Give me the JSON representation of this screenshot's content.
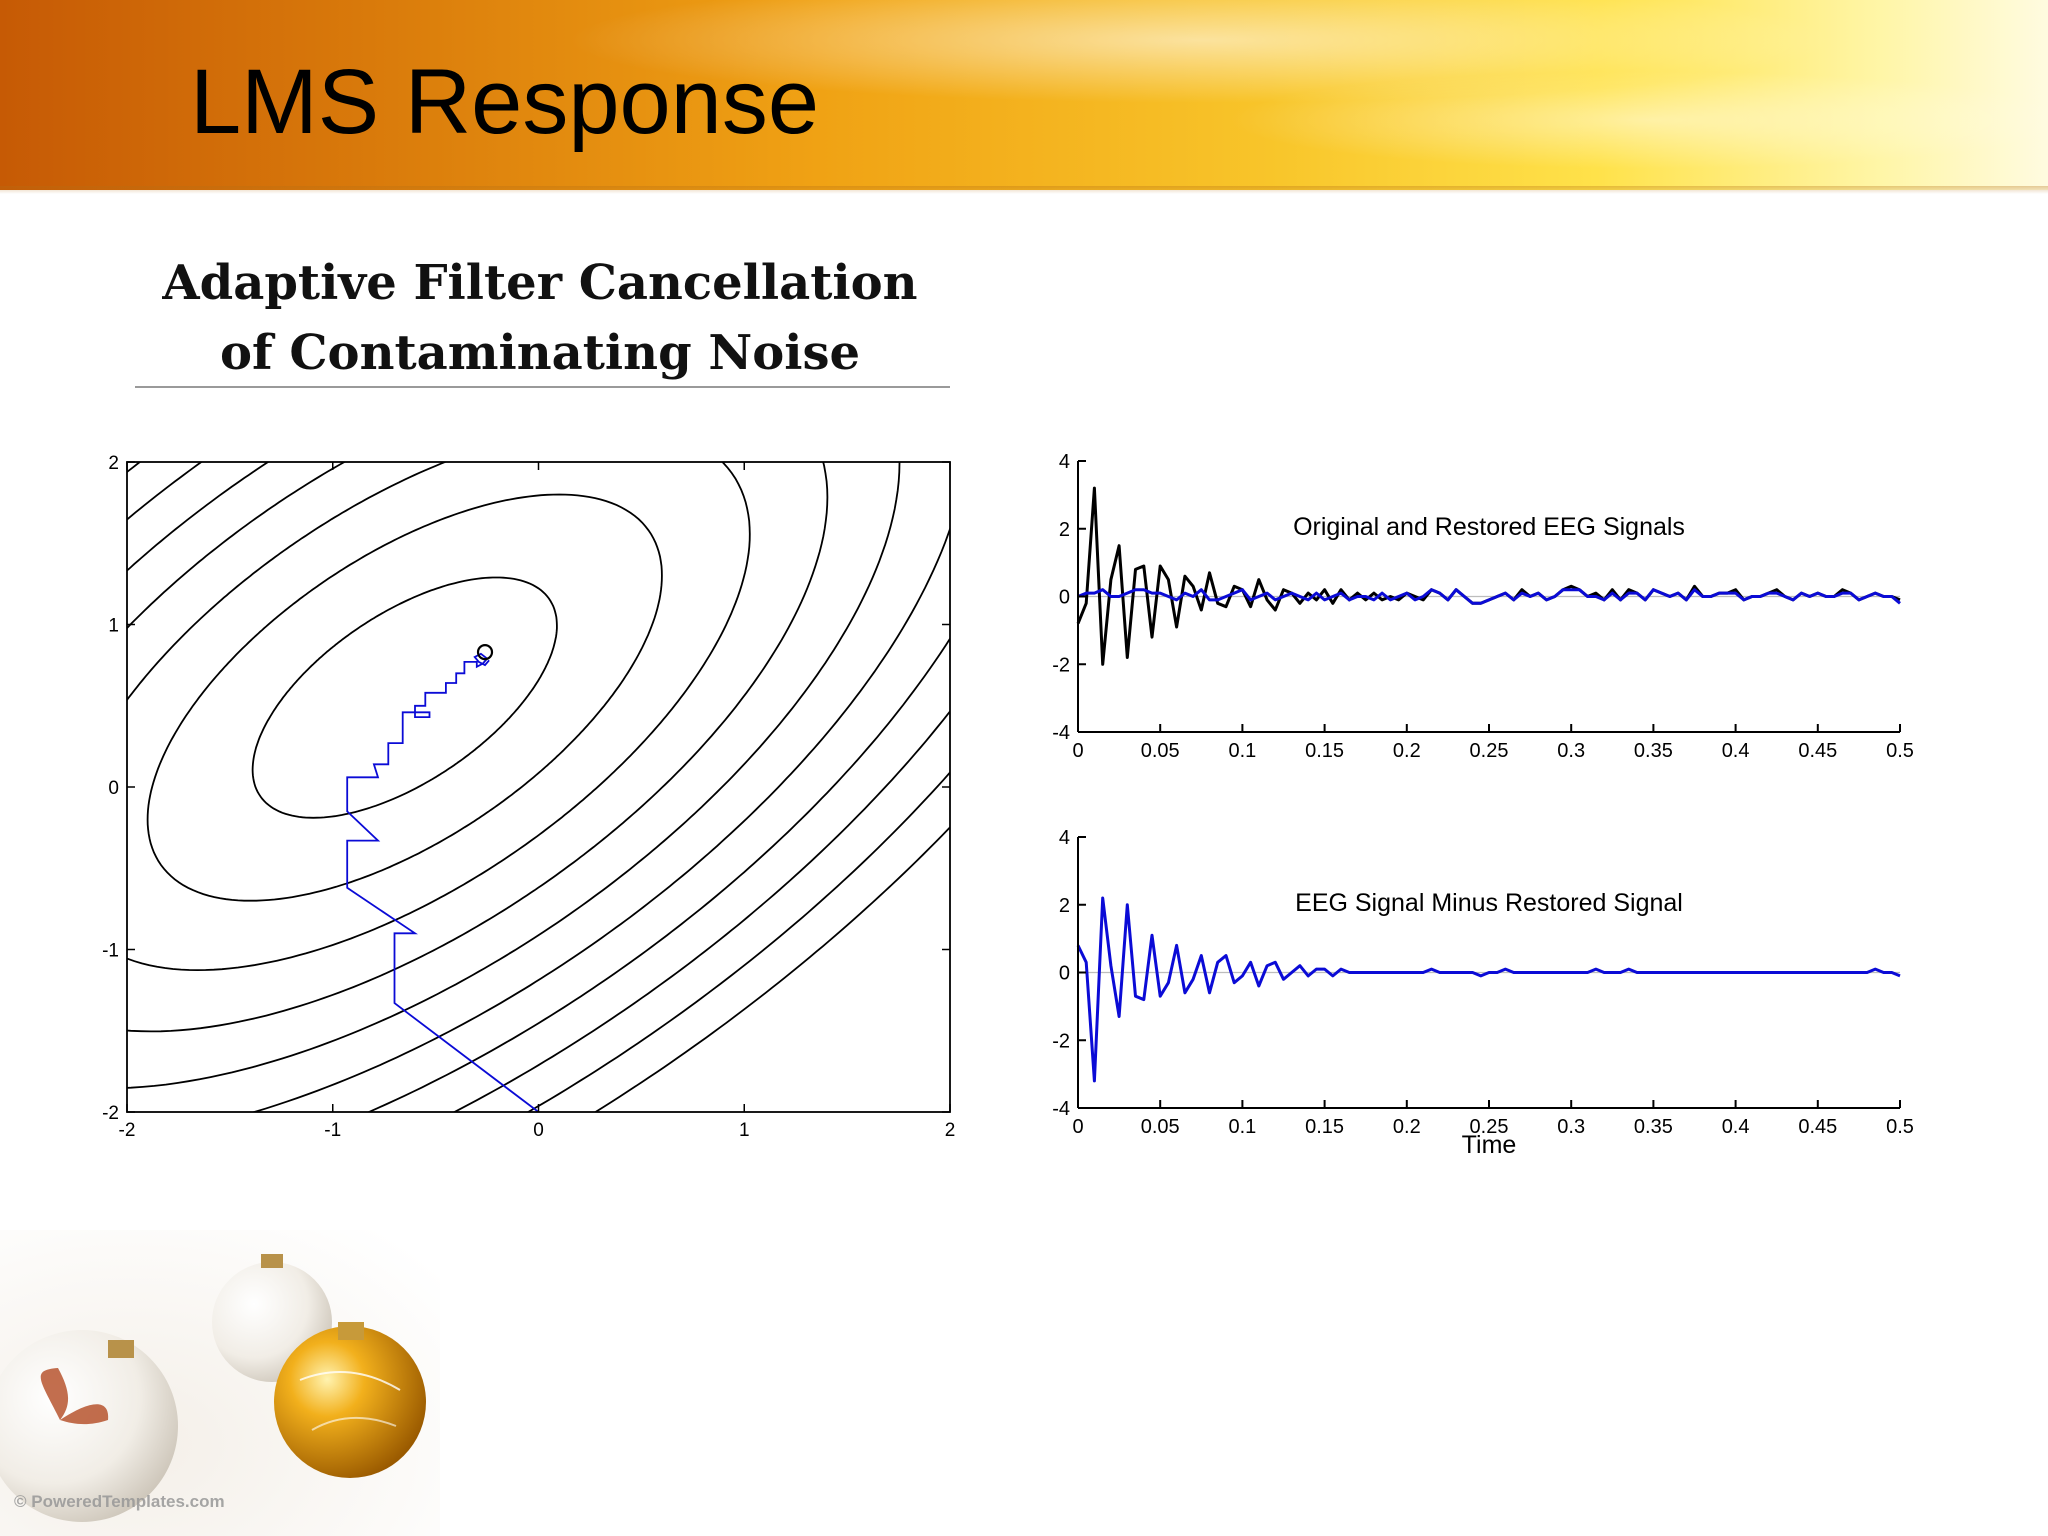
{
  "slide": {
    "title": "LMS Response",
    "figure_heading": "Adaptive Filter Cancellation of Contaminating Noise",
    "footer_credit": "© PoweredTemplates.com"
  },
  "colors": {
    "banner_dark": "#c65a05",
    "banner_light": "#ffe24a",
    "black_signal": "#000000",
    "blue_signal": "#0b0bd6",
    "contour": "#000000"
  },
  "chart_data": [
    {
      "id": "contour",
      "type": "line",
      "title": "",
      "xlabel": "",
      "ylabel": "",
      "xlim": [
        -2,
        2
      ],
      "ylim": [
        -2,
        2
      ],
      "xticks": [
        -2,
        -1,
        0,
        1,
        2
      ],
      "yticks": [
        -2,
        -1,
        0,
        1,
        2
      ],
      "xtick_labels": [
        "-2",
        "-1",
        "0",
        "1",
        "2"
      ],
      "ytick_labels": [
        "-2",
        "-1",
        "0",
        "1",
        "2"
      ],
      "grid": false,
      "contour_center": [
        -0.65,
        0.55
      ],
      "contour_levels": [
        0.35,
        1.0,
        1.8,
        2.7,
        3.7,
        4.8,
        6.0,
        7.3,
        8.7,
        10.2
      ],
      "contour_shape": {
        "a": 1.0,
        "b": -1.2,
        "c": 1.0
      },
      "path": {
        "color": "blue",
        "points": [
          [
            0.0,
            -2.0
          ],
          [
            -0.7,
            -1.33
          ],
          [
            -0.7,
            -0.9
          ],
          [
            -0.6,
            -0.9
          ],
          [
            -0.93,
            -0.62
          ],
          [
            -0.93,
            -0.33
          ],
          [
            -0.78,
            -0.33
          ],
          [
            -0.93,
            -0.15
          ],
          [
            -0.93,
            0.06
          ],
          [
            -0.78,
            0.06
          ],
          [
            -0.8,
            0.14
          ],
          [
            -0.73,
            0.14
          ],
          [
            -0.73,
            0.27
          ],
          [
            -0.66,
            0.27
          ],
          [
            -0.66,
            0.46
          ],
          [
            -0.53,
            0.46
          ],
          [
            -0.53,
            0.43
          ],
          [
            -0.6,
            0.43
          ],
          [
            -0.6,
            0.5
          ],
          [
            -0.55,
            0.5
          ],
          [
            -0.55,
            0.58
          ],
          [
            -0.45,
            0.58
          ],
          [
            -0.45,
            0.64
          ],
          [
            -0.4,
            0.64
          ],
          [
            -0.4,
            0.7
          ],
          [
            -0.36,
            0.7
          ],
          [
            -0.36,
            0.77
          ],
          [
            -0.3,
            0.77
          ],
          [
            -0.3,
            0.74
          ],
          [
            -0.27,
            0.76
          ],
          [
            -0.25,
            0.79
          ],
          [
            -0.28,
            0.82
          ],
          [
            -0.31,
            0.8
          ],
          [
            -0.29,
            0.77
          ],
          [
            -0.26,
            0.75
          ],
          [
            -0.24,
            0.78
          ]
        ],
        "end_marker": [
          -0.26,
          0.83
        ]
      }
    },
    {
      "id": "restored",
      "type": "line",
      "title": "Original and Restored EEG Signals",
      "xlabel": "",
      "ylabel": "",
      "xlim": [
        0,
        0.5
      ],
      "ylim": [
        -4,
        4
      ],
      "xticks": [
        0,
        0.05,
        0.1,
        0.15,
        0.2,
        0.25,
        0.3,
        0.35,
        0.4,
        0.45,
        0.5
      ],
      "xtick_labels": [
        "0",
        "0.05",
        "0.1",
        "0.15",
        "0.2",
        "0.25",
        "0.3",
        "0.35",
        "0.4",
        "0.45",
        "0.5"
      ],
      "yticks": [
        -4,
        -2,
        0,
        2,
        4
      ],
      "ytick_labels": [
        "-4",
        "-2",
        "0",
        "2",
        "4"
      ],
      "grid": false,
      "series": [
        {
          "color": "black",
          "values": [
            -0.8,
            -0.2,
            3.2,
            -2.0,
            0.5,
            1.5,
            -1.8,
            0.8,
            0.9,
            -1.2,
            0.9,
            0.5,
            -0.9,
            0.6,
            0.3,
            -0.4,
            0.7,
            -0.2,
            -0.3,
            0.3,
            0.2,
            -0.3,
            0.5,
            -0.1,
            -0.4,
            0.2,
            0.1,
            -0.2,
            0.1,
            -0.1,
            0.2,
            -0.2,
            0.2,
            -0.1,
            0.1,
            -0.1,
            0.1,
            -0.1,
            0.0,
            -0.1,
            0.1,
            0.0,
            -0.1,
            0.2,
            0.1,
            -0.1,
            0.2,
            0.0,
            -0.2,
            -0.2,
            -0.1,
            0.0,
            0.1,
            -0.1,
            0.2,
            0.0,
            0.1,
            -0.1,
            0.0,
            0.2,
            0.3,
            0.2,
            0.0,
            0.1,
            -0.1,
            0.2,
            -0.1,
            0.2,
            0.1,
            -0.1,
            0.2,
            0.1,
            0.0,
            0.1,
            -0.1,
            0.3,
            0.0,
            0.0,
            0.1,
            0.1,
            0.2,
            -0.1,
            0.0,
            0.0,
            0.1,
            0.2,
            0.0,
            -0.1,
            0.1,
            0.0,
            0.1,
            0.0,
            0.0,
            0.2,
            0.1,
            -0.1,
            0.0,
            0.1,
            0.0,
            0.0,
            -0.1
          ]
        },
        {
          "color": "blue",
          "values": [
            0.0,
            0.1,
            0.1,
            0.2,
            0.0,
            0.0,
            0.1,
            0.2,
            0.2,
            0.1,
            0.1,
            0.0,
            -0.1,
            0.1,
            0.0,
            0.2,
            -0.1,
            -0.1,
            0.0,
            0.1,
            0.2,
            -0.1,
            0.0,
            0.1,
            -0.1,
            0.0,
            0.1,
            0.0,
            -0.1,
            0.1,
            -0.1,
            0.0,
            0.1,
            -0.1,
            0.0,
            0.0,
            -0.1,
            0.1,
            -0.1,
            0.0,
            0.1,
            -0.1,
            0.0,
            0.2,
            0.1,
            -0.1,
            0.2,
            0.0,
            -0.2,
            -0.2,
            -0.1,
            0.0,
            0.1,
            -0.1,
            0.1,
            0.0,
            0.1,
            -0.1,
            0.0,
            0.2,
            0.2,
            0.2,
            0.0,
            0.0,
            -0.1,
            0.1,
            -0.1,
            0.1,
            0.1,
            -0.1,
            0.2,
            0.1,
            0.0,
            0.1,
            -0.1,
            0.2,
            0.0,
            0.0,
            0.1,
            0.1,
            0.1,
            -0.1,
            0.0,
            0.0,
            0.1,
            0.1,
            0.0,
            -0.1,
            0.1,
            0.0,
            0.1,
            0.0,
            0.0,
            0.1,
            0.1,
            -0.1,
            0.0,
            0.1,
            0.0,
            0.0,
            -0.2
          ]
        }
      ]
    },
    {
      "id": "difference",
      "type": "line",
      "title": "EEG Signal Minus Restored Signal",
      "xlabel": "Time",
      "ylabel": "",
      "xlim": [
        0,
        0.5
      ],
      "ylim": [
        -4,
        4
      ],
      "xticks": [
        0,
        0.05,
        0.1,
        0.15,
        0.2,
        0.25,
        0.3,
        0.35,
        0.4,
        0.45,
        0.5
      ],
      "xtick_labels": [
        "0",
        "0.05",
        "0.1",
        "0.15",
        "0.2",
        "0.25",
        "0.3",
        "0.35",
        "0.4",
        "0.45",
        "0.5"
      ],
      "yticks": [
        -4,
        -2,
        0,
        2,
        4
      ],
      "ytick_labels": [
        "-4",
        "-2",
        "0",
        "2",
        "4"
      ],
      "grid": false,
      "series": [
        {
          "color": "blue",
          "values": [
            0.8,
            0.3,
            -3.2,
            2.2,
            0.2,
            -1.3,
            2.0,
            -0.7,
            -0.8,
            1.1,
            -0.7,
            -0.3,
            0.8,
            -0.6,
            -0.2,
            0.5,
            -0.6,
            0.3,
            0.5,
            -0.3,
            -0.1,
            0.3,
            -0.4,
            0.2,
            0.3,
            -0.2,
            0.0,
            0.2,
            -0.1,
            0.1,
            0.1,
            -0.1,
            0.1,
            0.0,
            0.0,
            0.0,
            0.0,
            0.0,
            0.0,
            0.0,
            0.0,
            0.0,
            0.0,
            0.1,
            0.0,
            0.0,
            0.0,
            0.0,
            0.0,
            -0.1,
            0.0,
            0.0,
            0.1,
            0.0,
            0.0,
            0.0,
            0.0,
            0.0,
            0.0,
            0.0,
            0.0,
            0.0,
            0.0,
            0.1,
            0.0,
            0.0,
            0.0,
            0.1,
            0.0,
            0.0,
            0.0,
            0.0,
            0.0,
            0.0,
            0.0,
            0.0,
            0.0,
            0.0,
            0.0,
            0.0,
            0.0,
            0.0,
            0.0,
            0.0,
            0.0,
            0.0,
            0.0,
            0.0,
            0.0,
            0.0,
            0.0,
            0.0,
            0.0,
            0.0,
            0.0,
            0.0,
            0.0,
            0.1,
            0.0,
            0.0,
            -0.1
          ]
        }
      ]
    }
  ]
}
